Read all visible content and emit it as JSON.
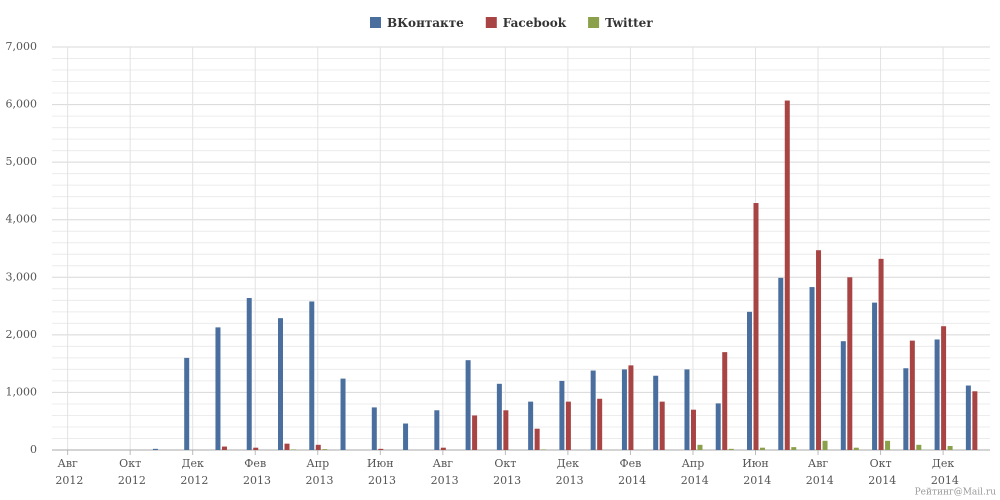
{
  "chart_data": {
    "type": "bar",
    "categories": [
      "Авг 2012",
      null,
      "Окт 2012",
      null,
      "Дек 2012",
      null,
      "Фев 2013",
      null,
      "Апр 2013",
      null,
      "Июн 2013",
      null,
      "Авг 2013",
      null,
      "Окт 2013",
      null,
      "Дек 2013",
      null,
      "Фев 2014",
      null,
      "Апр 2014",
      null,
      "Июн 2014",
      null,
      "Авг 2014",
      null,
      "Окт 2014",
      null,
      "Дек 2014",
      null
    ],
    "series": [
      {
        "name": "ВКонтакте",
        "color": "#4a6f9f",
        "values": [
          0,
          0,
          0,
          20,
          1600,
          2130,
          2640,
          2290,
          2580,
          1240,
          740,
          460,
          690,
          1560,
          1150,
          840,
          1200,
          1380,
          1400,
          1290,
          1400,
          810,
          2400,
          2990,
          2830,
          1890,
          2560,
          1420,
          1920,
          1120
        ]
      },
      {
        "name": "Facebook",
        "color": "#a84444",
        "values": [
          0,
          0,
          0,
          0,
          0,
          60,
          40,
          110,
          90,
          0,
          20,
          0,
          40,
          600,
          690,
          370,
          840,
          890,
          1470,
          840,
          700,
          1700,
          4290,
          6070,
          3470,
          3000,
          3320,
          1900,
          2150,
          1020
        ]
      },
      {
        "name": "Twitter",
        "color": "#8aa04a",
        "values": [
          0,
          0,
          0,
          0,
          0,
          0,
          0,
          10,
          15,
          0,
          0,
          0,
          0,
          0,
          0,
          10,
          0,
          0,
          0,
          0,
          90,
          20,
          40,
          50,
          160,
          40,
          160,
          90,
          70,
          0
        ]
      }
    ],
    "ylim": [
      0,
      7000
    ],
    "yticks": [
      0,
      {
        "value": 1000,
        "label": "1,000"
      },
      {
        "value": 2000,
        "label": "2,000"
      },
      {
        "value": 3000,
        "label": "3,000"
      },
      {
        "value": 4000,
        "label": "4,000"
      },
      {
        "value": 5000,
        "label": "5,000"
      },
      {
        "value": 6000,
        "label": "6,000"
      },
      {
        "value": 7000,
        "label": "7,000"
      }
    ],
    "grid": true,
    "legend": "top",
    "credit": "Рейтинг@Mail.ru"
  }
}
